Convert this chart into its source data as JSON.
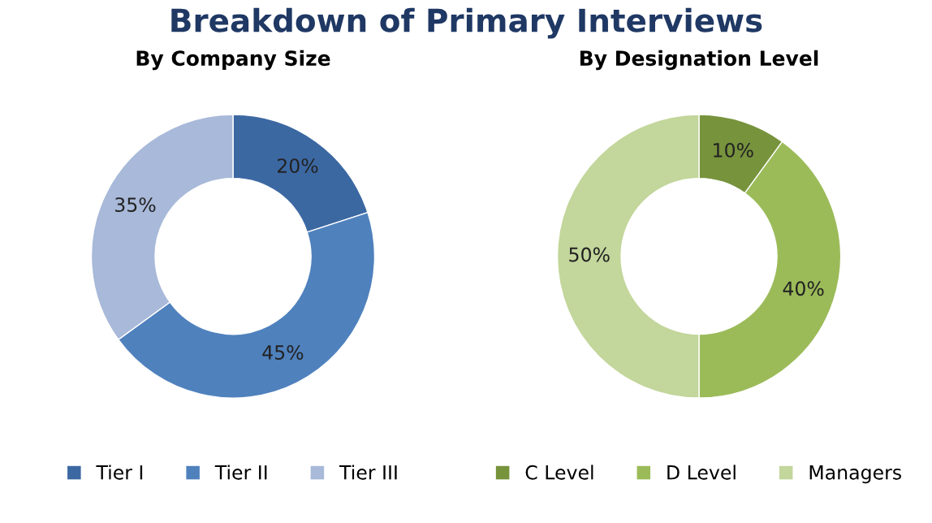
{
  "chart_data": [
    {
      "type": "donut",
      "title": "Breakdown of Primary Interviews",
      "subtitle": "By Company Size",
      "categories": [
        "Tier I",
        "Tier II",
        "Tier III"
      ],
      "values": [
        20,
        45,
        35
      ],
      "value_labels": [
        "20%",
        "45%",
        "35%"
      ],
      "colors": [
        "#3c68a2",
        "#4f81bd",
        "#a8b9d9"
      ],
      "legend": "bottom"
    },
    {
      "type": "donut",
      "subtitle": "By Designation Level",
      "categories": [
        "C Level",
        "D Level",
        "Managers"
      ],
      "values": [
        10,
        40,
        50
      ],
      "value_labels": [
        "10%",
        "40%",
        "50%"
      ],
      "colors": [
        "#77933c",
        "#9bbb59",
        "#c3d69b"
      ],
      "legend": "bottom"
    }
  ]
}
